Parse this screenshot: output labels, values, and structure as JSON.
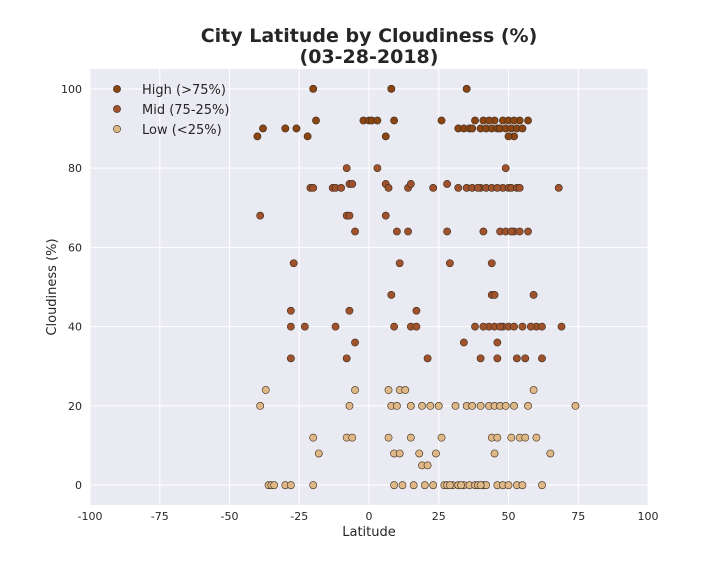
{
  "chart_data": {
    "type": "scatter",
    "title": "City Latitude by Cloudiness (%)",
    "subtitle": "(03-28-2018)",
    "xlabel": "Latitude",
    "ylabel": "Cloudiness (%)",
    "xlim": [
      -100,
      100
    ],
    "ylim": [
      -5,
      105
    ],
    "xticks": [
      -100,
      -75,
      -50,
      -25,
      0,
      25,
      50,
      75,
      100
    ],
    "yticks": [
      0,
      20,
      40,
      60,
      80,
      100
    ],
    "grid": true,
    "legend_position": "top-left",
    "series": [
      {
        "name": "High (>75%)",
        "color": "#8B4513",
        "points": [
          [
            -20,
            100
          ],
          [
            8,
            100
          ],
          [
            35,
            100
          ],
          [
            -40,
            88
          ],
          [
            -38,
            90
          ],
          [
            -30,
            90
          ],
          [
            -26,
            90
          ],
          [
            -22,
            88
          ],
          [
            -19,
            92
          ],
          [
            -2,
            92
          ],
          [
            0,
            92
          ],
          [
            1,
            92
          ],
          [
            3,
            92
          ],
          [
            6,
            88
          ],
          [
            9,
            92
          ],
          [
            26,
            92
          ],
          [
            32,
            90
          ],
          [
            34,
            90
          ],
          [
            36,
            90
          ],
          [
            38,
            92
          ],
          [
            40,
            90
          ],
          [
            41,
            92
          ],
          [
            42,
            90
          ],
          [
            44,
            90
          ],
          [
            45,
            92
          ],
          [
            46,
            90
          ],
          [
            47,
            90
          ],
          [
            48,
            92
          ],
          [
            49,
            90
          ],
          [
            50,
            92
          ],
          [
            51,
            90
          ],
          [
            52,
            88
          ],
          [
            53,
            90
          ],
          [
            54,
            92
          ],
          [
            55,
            90
          ],
          [
            57,
            92
          ],
          [
            37,
            90
          ],
          [
            43,
            92
          ],
          [
            50,
            88
          ],
          [
            52,
            92
          ]
        ]
      },
      {
        "name": "Mid (75-25%)",
        "color": "#A0522D",
        "points": [
          [
            -39,
            68
          ],
          [
            -27,
            56
          ],
          [
            -28,
            44
          ],
          [
            -28,
            40
          ],
          [
            -28,
            32
          ],
          [
            -23,
            40
          ],
          [
            -21,
            75
          ],
          [
            -20,
            75
          ],
          [
            -13,
            75
          ],
          [
            -12,
            75
          ],
          [
            -10,
            75
          ],
          [
            -8,
            80
          ],
          [
            -8,
            68
          ],
          [
            -7,
            76
          ],
          [
            -7,
            68
          ],
          [
            -6,
            76
          ],
          [
            -5,
            64
          ],
          [
            -12,
            40
          ],
          [
            -7,
            44
          ],
          [
            -5,
            36
          ],
          [
            -8,
            32
          ],
          [
            3,
            80
          ],
          [
            6,
            76
          ],
          [
            7,
            75
          ],
          [
            6,
            68
          ],
          [
            8,
            48
          ],
          [
            9,
            40
          ],
          [
            10,
            64
          ],
          [
            11,
            56
          ],
          [
            14,
            75
          ],
          [
            15,
            76
          ],
          [
            14,
            64
          ],
          [
            15,
            40
          ],
          [
            17,
            44
          ],
          [
            17,
            40
          ],
          [
            21,
            32
          ],
          [
            23,
            75
          ],
          [
            28,
            76
          ],
          [
            28,
            64
          ],
          [
            29,
            56
          ],
          [
            32,
            75
          ],
          [
            34,
            36
          ],
          [
            35,
            75
          ],
          [
            37,
            75
          ],
          [
            38,
            40
          ],
          [
            40,
            32
          ],
          [
            40,
            75
          ],
          [
            41,
            64
          ],
          [
            42,
            75
          ],
          [
            43,
            40
          ],
          [
            44,
            56
          ],
          [
            44,
            48
          ],
          [
            45,
            40
          ],
          [
            46,
            36
          ],
          [
            46,
            32
          ],
          [
            47,
            64
          ],
          [
            48,
            75
          ],
          [
            48,
            40
          ],
          [
            49,
            64
          ],
          [
            49,
            80
          ],
          [
            50,
            75
          ],
          [
            50,
            40
          ],
          [
            51,
            75
          ],
          [
            52,
            64
          ],
          [
            52,
            40
          ],
          [
            53,
            75
          ],
          [
            53,
            32
          ],
          [
            54,
            64
          ],
          [
            55,
            40
          ],
          [
            56,
            32
          ],
          [
            57,
            64
          ],
          [
            59,
            48
          ],
          [
            60,
            40
          ],
          [
            62,
            40
          ],
          [
            62,
            32
          ],
          [
            68,
            75
          ],
          [
            69,
            40
          ],
          [
            44,
            75
          ],
          [
            46,
            75
          ],
          [
            45,
            48
          ],
          [
            41,
            40
          ],
          [
            39,
            75
          ],
          [
            47,
            40
          ],
          [
            51,
            64
          ],
          [
            54,
            75
          ],
          [
            58,
            40
          ]
        ]
      },
      {
        "name": "Low (<25%)",
        "color": "#DEB887",
        "points": [
          [
            -39,
            20
          ],
          [
            -37,
            24
          ],
          [
            -36,
            0
          ],
          [
            -35,
            0
          ],
          [
            -34,
            0
          ],
          [
            -30,
            0
          ],
          [
            -28,
            0
          ],
          [
            -20,
            12
          ],
          [
            -18,
            8
          ],
          [
            -20,
            0
          ],
          [
            -8,
            12
          ],
          [
            -6,
            12
          ],
          [
            -7,
            20
          ],
          [
            -5,
            24
          ],
          [
            7,
            24
          ],
          [
            7,
            12
          ],
          [
            8,
            20
          ],
          [
            9,
            8
          ],
          [
            9,
            0
          ],
          [
            10,
            20
          ],
          [
            11,
            24
          ],
          [
            11,
            8
          ],
          [
            12,
            0
          ],
          [
            13,
            24
          ],
          [
            15,
            20
          ],
          [
            15,
            12
          ],
          [
            16,
            0
          ],
          [
            18,
            8
          ],
          [
            19,
            20
          ],
          [
            19,
            5
          ],
          [
            20,
            0
          ],
          [
            21,
            5
          ],
          [
            22,
            20
          ],
          [
            23,
            0
          ],
          [
            24,
            8
          ],
          [
            25,
            20
          ],
          [
            26,
            12
          ],
          [
            27,
            0
          ],
          [
            28,
            0
          ],
          [
            30,
            0
          ],
          [
            31,
            20
          ],
          [
            32,
            0
          ],
          [
            34,
            0
          ],
          [
            35,
            20
          ],
          [
            36,
            0
          ],
          [
            37,
            20
          ],
          [
            38,
            0
          ],
          [
            39,
            0
          ],
          [
            40,
            20
          ],
          [
            41,
            0
          ],
          [
            42,
            0
          ],
          [
            43,
            20
          ],
          [
            44,
            12
          ],
          [
            45,
            8
          ],
          [
            45,
            20
          ],
          [
            46,
            0
          ],
          [
            47,
            20
          ],
          [
            48,
            0
          ],
          [
            49,
            20
          ],
          [
            50,
            0
          ],
          [
            51,
            12
          ],
          [
            52,
            20
          ],
          [
            53,
            0
          ],
          [
            54,
            12
          ],
          [
            55,
            0
          ],
          [
            56,
            12
          ],
          [
            57,
            20
          ],
          [
            59,
            24
          ],
          [
            60,
            12
          ],
          [
            62,
            0
          ],
          [
            65,
            8
          ],
          [
            74,
            20
          ],
          [
            40,
            0
          ],
          [
            46,
            12
          ],
          [
            33,
            0
          ],
          [
            29,
            0
          ]
        ]
      }
    ]
  }
}
